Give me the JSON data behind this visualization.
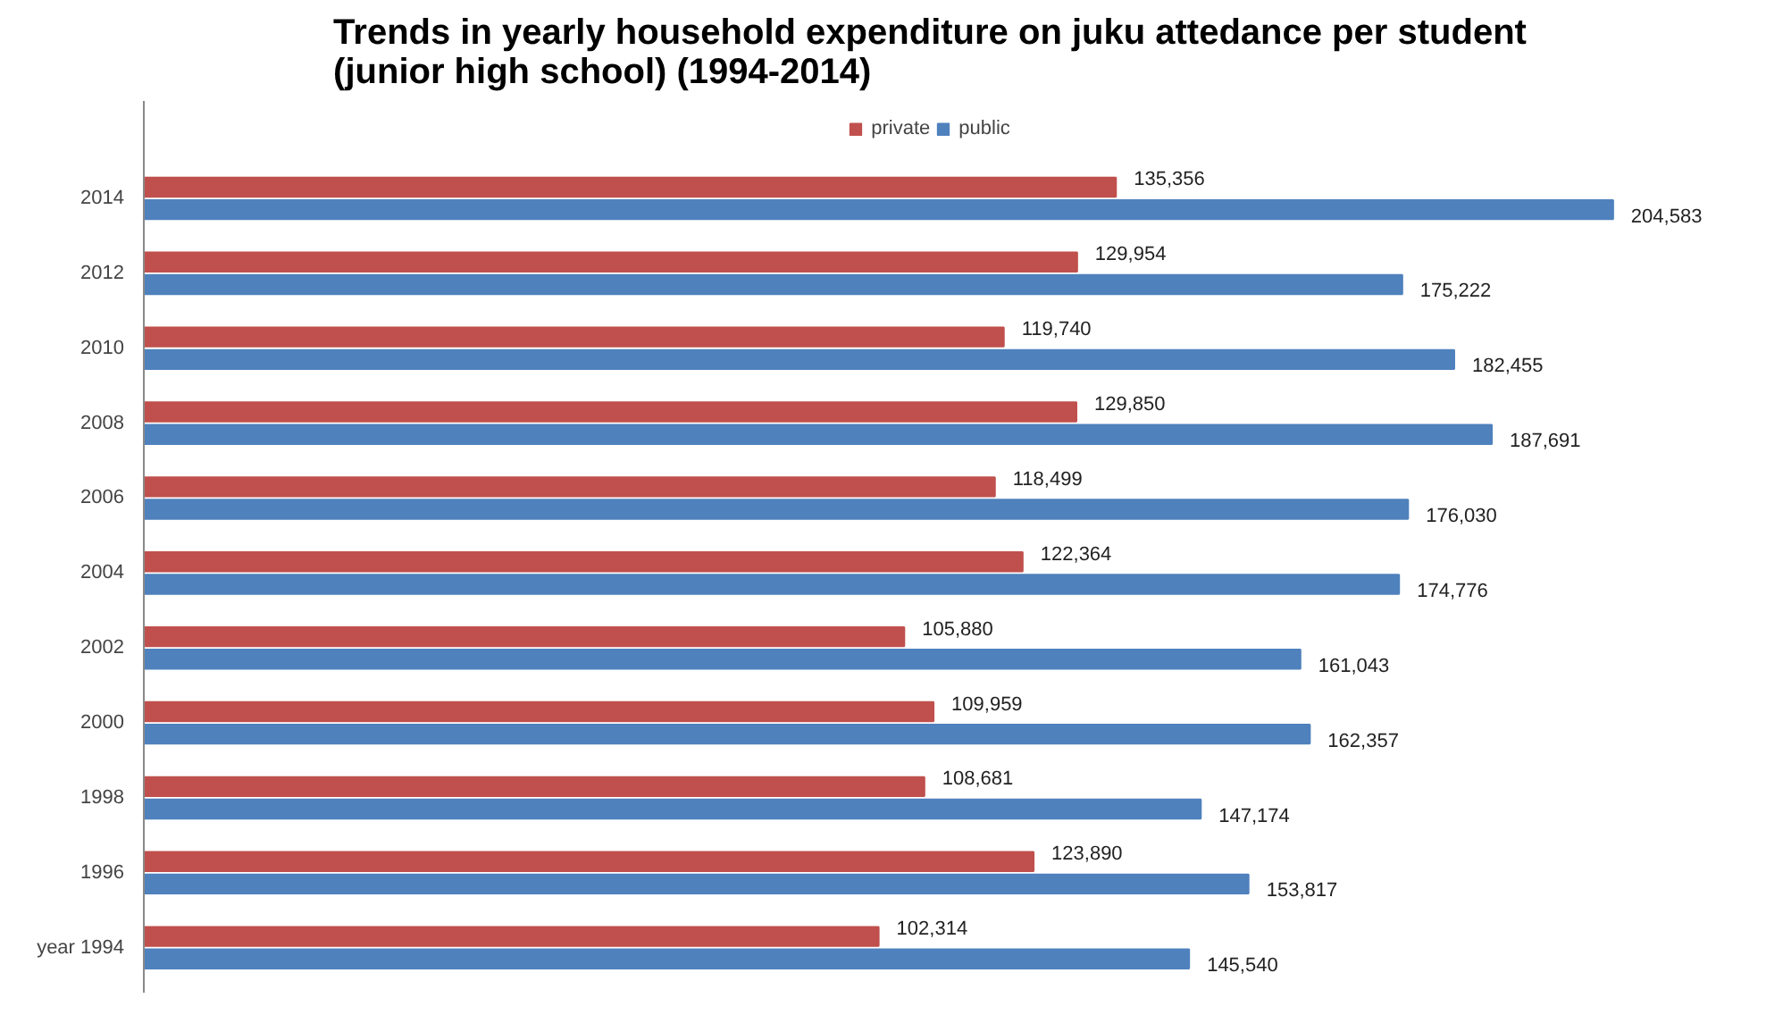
{
  "chart_data": {
    "type": "bar",
    "orientation": "horizontal",
    "title": "Trends in yearly household expenditure on juku attedance per student\n(junior high school) (1994-2014)",
    "categories": [
      "2014",
      "2012",
      "2010",
      "2008",
      "2006",
      "2004",
      "2002",
      "2000",
      "1998",
      "1996",
      "year 1994"
    ],
    "series": [
      {
        "name": "private",
        "color": "#c0504d",
        "values": [
          135356,
          129954,
          119740,
          129850,
          118499,
          122364,
          105880,
          109959,
          108681,
          123890,
          102314
        ],
        "value_labels": [
          "135,356",
          "129,954",
          "119,740",
          "129,850",
          "118,499",
          "122,364",
          "105,880",
          "109,959",
          "108,681",
          "123,890",
          "102,314"
        ]
      },
      {
        "name": "public",
        "color": "#4f81bd",
        "values": [
          204583,
          175222,
          182455,
          187691,
          176030,
          174776,
          161043,
          162357,
          147174,
          153817,
          145540
        ],
        "value_labels": [
          "204,583",
          "175,222",
          "182,455",
          "187,691",
          "176,030",
          "174,776",
          "161,043",
          "162,357",
          "147,174",
          "153,817",
          "145,540"
        ]
      }
    ],
    "legend": "top",
    "tick_labels": "y"
  }
}
